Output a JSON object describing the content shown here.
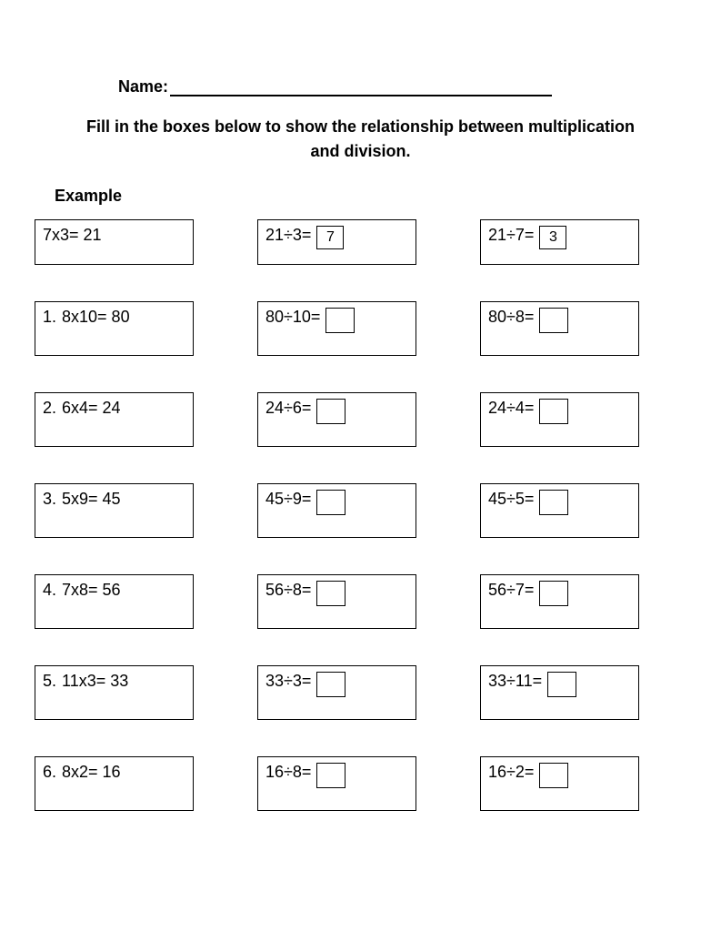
{
  "background_color": "#ffffff",
  "text_color": "#000000",
  "border_color": "#000000",
  "header": {
    "name_label": "Name:",
    "instructions": "Fill in the boxes below to show the relationship between multiplication and division.",
    "example_label": "Example"
  },
  "rows": [
    {
      "multiplication": {
        "number": "",
        "expr": "7x3= 21"
      },
      "division1": {
        "expr": "21÷3=",
        "answer": "7"
      },
      "division2": {
        "expr": "21÷7=",
        "answer": "3"
      }
    },
    {
      "multiplication": {
        "number": "1.",
        "expr": "8x10= 80"
      },
      "division1": {
        "expr": "80÷10=",
        "answer": ""
      },
      "division2": {
        "expr": "80÷8=",
        "answer": ""
      }
    },
    {
      "multiplication": {
        "number": "2.",
        "expr": "6x4= 24"
      },
      "division1": {
        "expr": "24÷6=",
        "answer": ""
      },
      "division2": {
        "expr": "24÷4=",
        "answer": ""
      }
    },
    {
      "multiplication": {
        "number": "3.",
        "expr": "5x9= 45"
      },
      "division1": {
        "expr": "45÷9=",
        "answer": ""
      },
      "division2": {
        "expr": "45÷5=",
        "answer": ""
      }
    },
    {
      "multiplication": {
        "number": "4.",
        "expr": "7x8= 56"
      },
      "division1": {
        "expr": "56÷8=",
        "answer": ""
      },
      "division2": {
        "expr": "56÷7=",
        "answer": ""
      }
    },
    {
      "multiplication": {
        "number": "5.",
        "expr": "11x3= 33"
      },
      "division1": {
        "expr": "33÷3=",
        "answer": ""
      },
      "division2": {
        "expr": "33÷11=",
        "answer": ""
      }
    },
    {
      "multiplication": {
        "number": "6.",
        "expr": "8x2= 16"
      },
      "division1": {
        "expr": "16÷8=",
        "answer": ""
      },
      "division2": {
        "expr": "16÷2=",
        "answer": ""
      }
    }
  ]
}
